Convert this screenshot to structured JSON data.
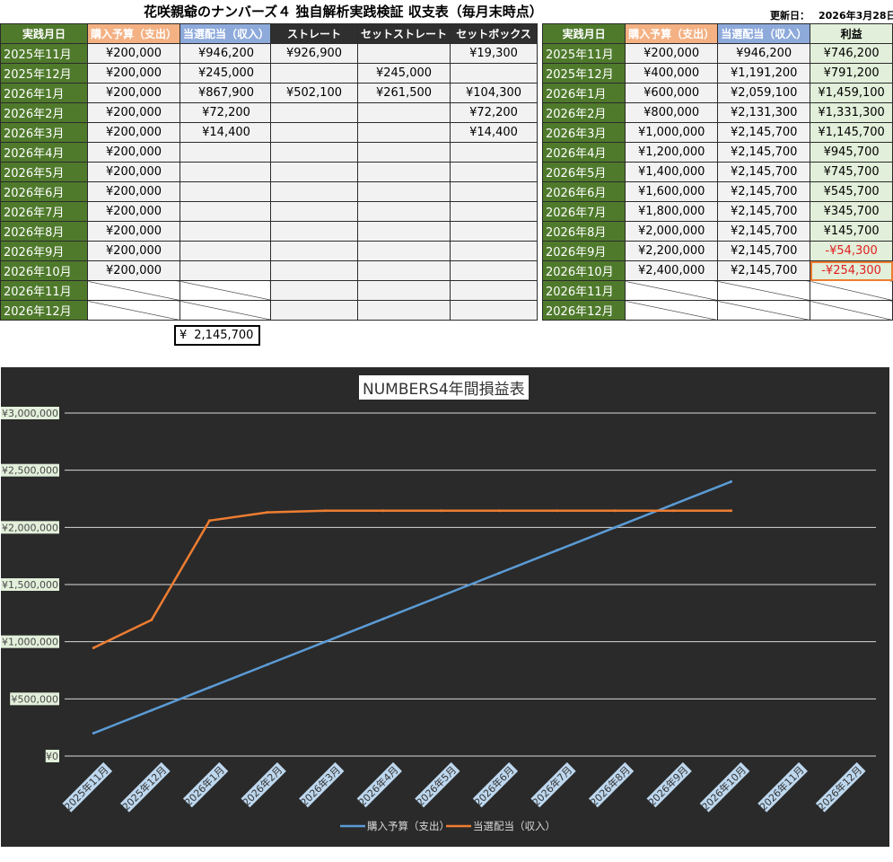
{
  "title": "花咲親爺のナンバーズ４ 独自解析実践検証 収支表（毎月末時点）",
  "updated_label": "更新日：",
  "updated_date": "2026年3月28日",
  "left_table": {
    "headers": [
      "実践月日",
      "購入予算（支出）",
      "当選配当（収入）"
    ],
    "rows": [
      [
        "2025年11月",
        "¥200,000",
        "¥946,200"
      ],
      [
        "2025年12月",
        "¥200,000",
        "¥245,000"
      ],
      [
        "2026年1月",
        "¥200,000",
        "¥867,900"
      ],
      [
        "2026年2月",
        "¥200,000",
        "¥72,200"
      ],
      [
        "2026年3月",
        "¥200,000",
        "¥14,400"
      ],
      [
        "2026年4月",
        "¥200,000",
        ""
      ],
      [
        "2026年5月",
        "¥200,000",
        ""
      ],
      [
        "2026年6月",
        "¥200,000",
        ""
      ],
      [
        "2026年7月",
        "¥200,000",
        ""
      ],
      [
        "2026年8月",
        "¥200,000",
        ""
      ],
      [
        "2026年9月",
        "¥200,000",
        ""
      ],
      [
        "2026年10月",
        "¥200,000",
        ""
      ],
      [
        "2026年11月",
        "",
        ""
      ],
      [
        "2026年12月",
        "",
        ""
      ]
    ],
    "total_yen": "¥",
    "total_value": "2,145,700"
  },
  "middle_table": {
    "headers": [
      "ストレート",
      "セットストレート",
      "セットボックス"
    ],
    "rows": [
      [
        "¥926,900",
        "",
        "¥19,300"
      ],
      [
        "",
        "¥245,000",
        ""
      ],
      [
        "¥502,100",
        "¥261,500",
        "¥104,300"
      ],
      [
        "",
        "",
        "¥72,200"
      ],
      [
        "",
        "",
        "¥14,400"
      ],
      [
        "",
        "",
        ""
      ],
      [
        "",
        "",
        ""
      ],
      [
        "",
        "",
        ""
      ],
      [
        "",
        "",
        ""
      ],
      [
        "",
        "",
        ""
      ],
      [
        "",
        "",
        ""
      ],
      [
        "",
        "",
        ""
      ],
      [
        "",
        "",
        ""
      ],
      [
        "",
        "",
        ""
      ]
    ]
  },
  "right_table": {
    "headers": [
      "実践月日",
      "購入予算（支出）",
      "当選配当（収入）",
      "利益"
    ],
    "rows": [
      [
        "2025年11月",
        "¥200,000",
        "¥946,200",
        "¥746,200"
      ],
      [
        "2025年12月",
        "¥400,000",
        "¥1,191,200",
        "¥791,200"
      ],
      [
        "2026年1月",
        "¥600,000",
        "¥2,059,100",
        "¥1,459,100"
      ],
      [
        "2026年2月",
        "¥800,000",
        "¥2,131,300",
        "¥1,331,300"
      ],
      [
        "2026年3月",
        "¥1,000,000",
        "¥2,145,700",
        "¥1,145,700"
      ],
      [
        "2026年4月",
        "¥1,200,000",
        "¥2,145,700",
        "¥945,700"
      ],
      [
        "2026年5月",
        "¥1,400,000",
        "¥2,145,700",
        "¥745,700"
      ],
      [
        "2026年6月",
        "¥1,600,000",
        "¥2,145,700",
        "¥545,700"
      ],
      [
        "2026年7月",
        "¥1,800,000",
        "¥2,145,700",
        "¥345,700"
      ],
      [
        "2026年8月",
        "¥2,000,000",
        "¥2,145,700",
        "¥145,700"
      ],
      [
        "2026年9月",
        "¥2,200,000",
        "¥2,145,700",
        "-¥54,300"
      ],
      [
        "2026年10月",
        "¥2,400,000",
        "¥2,145,700",
        "-¥254,300"
      ],
      [
        "2026年11月",
        "",
        "",
        ""
      ],
      [
        "2026年12月",
        "",
        "",
        ""
      ]
    ]
  },
  "colors": {
    "header_green": "#4f7a2c",
    "header_orange": "#f4b183",
    "header_blue": "#8eaadb",
    "profit_bg": "#e2efda",
    "negative": "#e02020",
    "selection": "#ed7d31",
    "chart_bg": "#2a2a2a",
    "series_budget": "#5b9bd5",
    "series_income": "#ed7d31"
  },
  "chart_data": {
    "type": "line",
    "title": "NUMBERS4年間損益表",
    "categories": [
      "2025年11月",
      "2025年12月",
      "2026年1月",
      "2026年2月",
      "2026年3月",
      "2026年4月",
      "2026年5月",
      "2026年6月",
      "2026年7月",
      "2026年8月",
      "2026年9月",
      "2026年10月",
      "2026年11月",
      "2026年12月"
    ],
    "series": [
      {
        "name": "購入予算（支出）",
        "color": "#5b9bd5",
        "values": [
          200000,
          400000,
          600000,
          800000,
          1000000,
          1200000,
          1400000,
          1600000,
          1800000,
          2000000,
          2200000,
          2400000,
          null,
          null
        ]
      },
      {
        "name": "当選配当（収入）",
        "color": "#ed7d31",
        "values": [
          946200,
          1191200,
          2059100,
          2131300,
          2145700,
          2145700,
          2145700,
          2145700,
          2145700,
          2145700,
          2145700,
          2145700,
          null,
          null
        ]
      }
    ],
    "ylim": [
      0,
      3000000
    ],
    "y_ticks": [
      "¥0",
      "¥500,000",
      "¥1,000,000",
      "¥1,500,000",
      "¥2,000,000",
      "¥2,500,000",
      "¥3,000,000"
    ],
    "grid": true,
    "legend": "bottom"
  }
}
